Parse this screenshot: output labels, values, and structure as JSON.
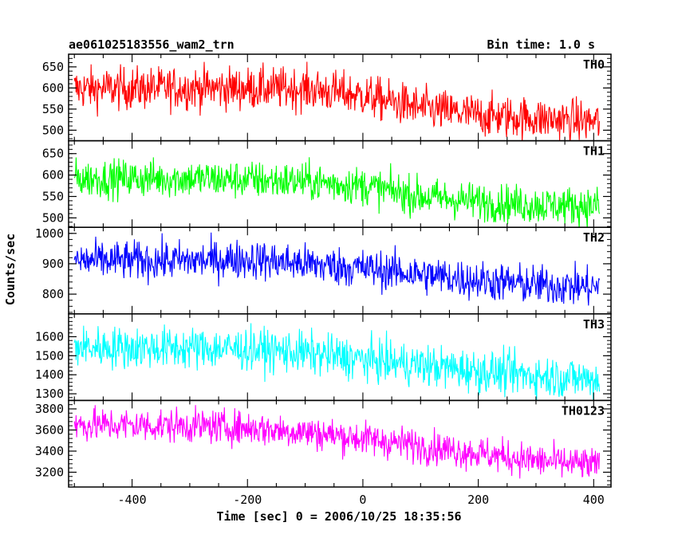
{
  "header": {
    "title": "ae061025183556_wam2_trn",
    "bin_time": "Bin time: 1.0 s"
  },
  "chart_data": {
    "type": "line",
    "xlabel": "Time [sec] 0 = 2006/10/25 18:35:56",
    "ylabel": "Counts/sec",
    "xlim": [
      -510,
      430
    ],
    "xticks": [
      -400,
      -200,
      0,
      200,
      400
    ],
    "x_range_data": [
      -500,
      410
    ],
    "bin_time_s": 1.0,
    "panels": [
      {
        "name": "TH0",
        "color": "#ff0000",
        "ylim": [
          475,
          680
        ],
        "yticks": [
          500,
          550,
          600,
          650
        ],
        "trend": [
          [
            -500,
            598
          ],
          [
            -300,
            600
          ],
          [
            -100,
            598
          ],
          [
            0,
            582
          ],
          [
            100,
            552
          ],
          [
            200,
            535
          ],
          [
            300,
            528
          ],
          [
            410,
            520
          ]
        ],
        "noise": 25
      },
      {
        "name": "TH1",
        "color": "#00ff00",
        "ylim": [
          478,
          680
        ],
        "yticks": [
          500,
          550,
          600,
          650
        ],
        "trend": [
          [
            -500,
            592
          ],
          [
            -300,
            592
          ],
          [
            -100,
            585
          ],
          [
            0,
            575
          ],
          [
            100,
            550
          ],
          [
            200,
            538
          ],
          [
            300,
            530
          ],
          [
            410,
            528
          ]
        ],
        "noise": 22
      },
      {
        "name": "TH2",
        "color": "#0000ff",
        "ylim": [
          735,
          1020
        ],
        "yticks": [
          800,
          900,
          1000
        ],
        "trend": [
          [
            -500,
            910
          ],
          [
            -300,
            910
          ],
          [
            -200,
            915
          ],
          [
            -100,
            900
          ],
          [
            0,
            885
          ],
          [
            100,
            865
          ],
          [
            200,
            845
          ],
          [
            300,
            830
          ],
          [
            410,
            822
          ]
        ],
        "noise": 32
      },
      {
        "name": "TH3",
        "color": "#00ffff",
        "ylim": [
          1265,
          1720
        ],
        "yticks": [
          1300,
          1400,
          1500,
          1600
        ],
        "trend": [
          [
            -500,
            1545
          ],
          [
            -300,
            1540
          ],
          [
            -200,
            1535
          ],
          [
            -100,
            1515
          ],
          [
            0,
            1480
          ],
          [
            100,
            1450
          ],
          [
            200,
            1420
          ],
          [
            300,
            1395
          ],
          [
            410,
            1375
          ]
        ],
        "noise": 55
      },
      {
        "name": "TH0123",
        "color": "#ff00ff",
        "ylim": [
          3060,
          3880
        ],
        "yticks": [
          3200,
          3400,
          3600,
          3800
        ],
        "trend": [
          [
            -500,
            3650
          ],
          [
            -300,
            3640
          ],
          [
            -200,
            3620
          ],
          [
            -100,
            3580
          ],
          [
            0,
            3520
          ],
          [
            100,
            3450
          ],
          [
            200,
            3380
          ],
          [
            300,
            3310
          ],
          [
            410,
            3260
          ]
        ],
        "noise": 80
      }
    ]
  }
}
